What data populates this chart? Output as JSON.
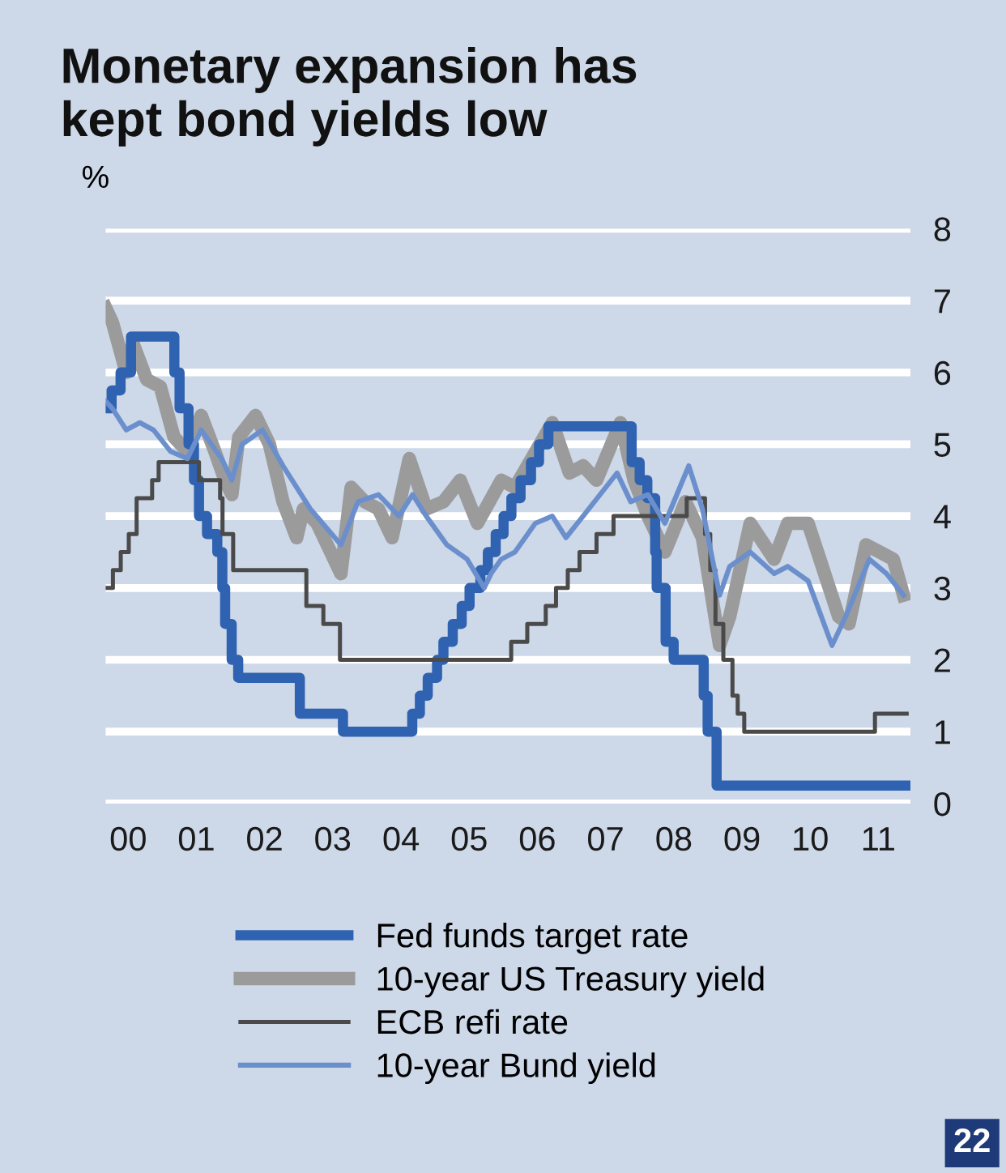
{
  "chart_data": {
    "type": "line",
    "title": "Monetary expansion has\nkept bond yields low",
    "ylabel": "%",
    "xlim": [
      "2000-01-01",
      "2011-10-20"
    ],
    "xticks": [
      {
        "value": "2000-05-01",
        "label": "00"
      },
      {
        "value": "2001-05-01",
        "label": "01"
      },
      {
        "value": "2002-05-01",
        "label": "02"
      },
      {
        "value": "2003-05-01",
        "label": "03"
      },
      {
        "value": "2004-05-01",
        "label": "04"
      },
      {
        "value": "2005-05-01",
        "label": "05"
      },
      {
        "value": "2006-05-01",
        "label": "06"
      },
      {
        "value": "2007-05-01",
        "label": "07"
      },
      {
        "value": "2008-05-01",
        "label": "08"
      },
      {
        "value": "2009-05-01",
        "label": "09"
      },
      {
        "value": "2010-05-01",
        "label": "10"
      },
      {
        "value": "2011-05-01",
        "label": "11"
      }
    ],
    "ylim": [
      0,
      8
    ],
    "yticks": [
      0,
      1,
      2,
      3,
      4,
      5,
      6,
      7,
      8
    ],
    "grid": "y",
    "legend": "bottom",
    "annotations": [
      "22"
    ],
    "series": [
      {
        "name": "Fed funds target rate",
        "type": "step",
        "color": "#2f62b0",
        "x": [
          "2000-01-01",
          "2000-02-02",
          "2000-03-21",
          "2000-05-16",
          "2001-01-03",
          "2001-01-31",
          "2001-03-20",
          "2001-04-18",
          "2001-05-15",
          "2001-06-27",
          "2001-08-21",
          "2001-09-17",
          "2001-10-02",
          "2001-11-06",
          "2001-12-11",
          "2002-11-06",
          "2003-06-25",
          "2004-06-30",
          "2004-08-10",
          "2004-09-21",
          "2004-11-10",
          "2004-12-14",
          "2005-02-02",
          "2005-03-22",
          "2005-05-03",
          "2005-06-30",
          "2005-08-09",
          "2005-09-20",
          "2005-11-01",
          "2005-12-13",
          "2006-01-31",
          "2006-03-28",
          "2006-05-10",
          "2006-06-29",
          "2007-09-18",
          "2007-10-31",
          "2007-12-11",
          "2008-01-22",
          "2008-01-30",
          "2008-03-18",
          "2008-04-30",
          "2008-10-08",
          "2008-10-29",
          "2008-12-16",
          "2011-09-30"
        ],
        "values": [
          5.5,
          5.75,
          6.0,
          6.5,
          6.0,
          5.5,
          5.0,
          4.5,
          4.0,
          3.75,
          3.5,
          3.0,
          2.5,
          2.0,
          1.75,
          1.25,
          1.0,
          1.25,
          1.5,
          1.75,
          2.0,
          2.25,
          2.5,
          2.75,
          3.0,
          3.25,
          3.5,
          3.75,
          4.0,
          4.25,
          4.5,
          4.75,
          5.0,
          5.25,
          4.75,
          4.5,
          4.25,
          3.5,
          3.0,
          2.25,
          2.0,
          1.5,
          1.0,
          0.25,
          0.25
        ]
      },
      {
        "name": "10-year US Treasury yield",
        "color": "#9b9b9b",
        "x": [
          "2000-01-01",
          "2000-02-06",
          "2000-04-20",
          "2000-05-27",
          "2000-08-08",
          "2000-10-20",
          "2001-01-01",
          "2001-03-14",
          "2001-05-27",
          "2001-08-08",
          "2001-10-01",
          "2001-11-07",
          "2001-12-14",
          "2002-03-14",
          "2002-05-27",
          "2002-08-08",
          "2002-10-20",
          "2002-11-25",
          "2003-02-06",
          "2003-06-14",
          "2003-08-08",
          "2003-10-20",
          "2004-01-01",
          "2004-03-14",
          "2004-06-14",
          "2004-09-13",
          "2004-12-14",
          "2005-03-14",
          "2005-06-14",
          "2005-10-20",
          "2006-01-01",
          "2006-07-20",
          "2006-10-20",
          "2007-01-01",
          "2007-03-14",
          "2007-07-20",
          "2007-10-01",
          "2007-12-14",
          "2008-03-14",
          "2008-07-02",
          "2008-10-01",
          "2009-01-01",
          "2009-02-24",
          "2009-06-14",
          "2009-10-20",
          "2010-01-01",
          "2010-04-20",
          "2010-10-01",
          "2010-11-25",
          "2011-02-24",
          "2011-05-08",
          "2011-07-20",
          "2011-09-13"
        ],
        "values": [
          6.9,
          6.7,
          6.0,
          6.4,
          5.9,
          5.8,
          5.1,
          4.9,
          5.4,
          4.9,
          4.5,
          4.3,
          5.1,
          5.4,
          5.0,
          4.2,
          3.7,
          4.1,
          3.9,
          3.2,
          4.4,
          4.2,
          4.1,
          3.7,
          4.8,
          4.1,
          4.2,
          4.5,
          3.9,
          4.5,
          4.4,
          5.3,
          4.6,
          4.7,
          4.5,
          5.3,
          4.5,
          4.0,
          3.5,
          4.2,
          3.7,
          2.2,
          2.6,
          3.9,
          3.4,
          3.9,
          3.9,
          2.6,
          2.5,
          3.6,
          3.5,
          3.4,
          2.9
        ]
      },
      {
        "name": "ECB refi rate",
        "type": "step",
        "color": "#4a4a4a",
        "x": [
          "2000-01-01",
          "2000-02-09",
          "2000-03-22",
          "2000-05-04",
          "2000-06-15",
          "2000-09-06",
          "2000-10-11",
          "2001-05-15",
          "2001-09-05",
          "2001-09-18",
          "2001-11-14",
          "2002-12-11",
          "2003-03-12",
          "2003-06-09",
          "2005-12-12",
          "2006-03-08",
          "2006-06-15",
          "2006-08-09",
          "2006-10-11",
          "2006-12-13",
          "2007-03-14",
          "2007-06-13",
          "2008-07-09",
          "2008-10-15",
          "2008-11-12",
          "2008-12-10",
          "2009-01-21",
          "2009-03-11",
          "2009-04-08",
          "2009-05-13",
          "2011-04-13",
          "2011-09-30"
        ],
        "values": [
          3.0,
          3.25,
          3.5,
          3.75,
          4.25,
          4.5,
          4.75,
          4.5,
          4.25,
          3.75,
          3.25,
          2.75,
          2.5,
          2.0,
          2.25,
          2.5,
          2.75,
          3.0,
          3.25,
          3.5,
          3.75,
          4.0,
          4.25,
          3.75,
          3.25,
          2.5,
          2.0,
          1.5,
          1.25,
          1.0,
          1.25,
          1.25
        ]
      },
      {
        "name": "10-year Bund yield",
        "color": "#6b8fcc",
        "x": [
          "2000-01-01",
          "2000-02-06",
          "2000-04-20",
          "2000-07-02",
          "2000-09-13",
          "2000-12-14",
          "2001-03-14",
          "2001-05-27",
          "2001-09-13",
          "2001-11-07",
          "2002-01-01",
          "2002-04-20",
          "2002-08-08",
          "2002-10-20",
          "2003-01-01",
          "2003-06-14",
          "2003-09-13",
          "2004-01-01",
          "2004-04-20",
          "2004-07-02",
          "2004-09-13",
          "2005-01-01",
          "2005-04-20",
          "2005-07-20",
          "2005-08-26",
          "2005-10-20",
          "2006-01-01",
          "2006-04-20",
          "2006-07-20",
          "2006-10-01",
          "2007-01-01",
          "2007-07-02",
          "2007-09-13",
          "2007-12-14",
          "2008-03-14",
          "2008-07-20",
          "2008-10-01",
          "2009-01-01",
          "2009-02-24",
          "2009-06-14",
          "2009-10-20",
          "2010-01-01",
          "2010-04-20",
          "2010-08-26",
          "2010-11-07",
          "2011-03-14",
          "2011-06-14",
          "2011-09-13"
        ],
        "values": [
          5.6,
          5.5,
          5.2,
          5.3,
          5.2,
          4.9,
          4.8,
          5.2,
          4.8,
          4.5,
          5.0,
          5.2,
          4.7,
          4.4,
          4.1,
          3.6,
          4.2,
          4.3,
          4.0,
          4.3,
          4.0,
          3.6,
          3.4,
          3.0,
          3.2,
          3.4,
          3.5,
          3.9,
          4.0,
          3.7,
          4.0,
          4.6,
          4.2,
          4.3,
          3.9,
          4.7,
          4.1,
          2.9,
          3.3,
          3.5,
          3.2,
          3.3,
          3.1,
          2.2,
          2.6,
          3.4,
          3.2,
          2.9
        ]
      }
    ]
  }
}
